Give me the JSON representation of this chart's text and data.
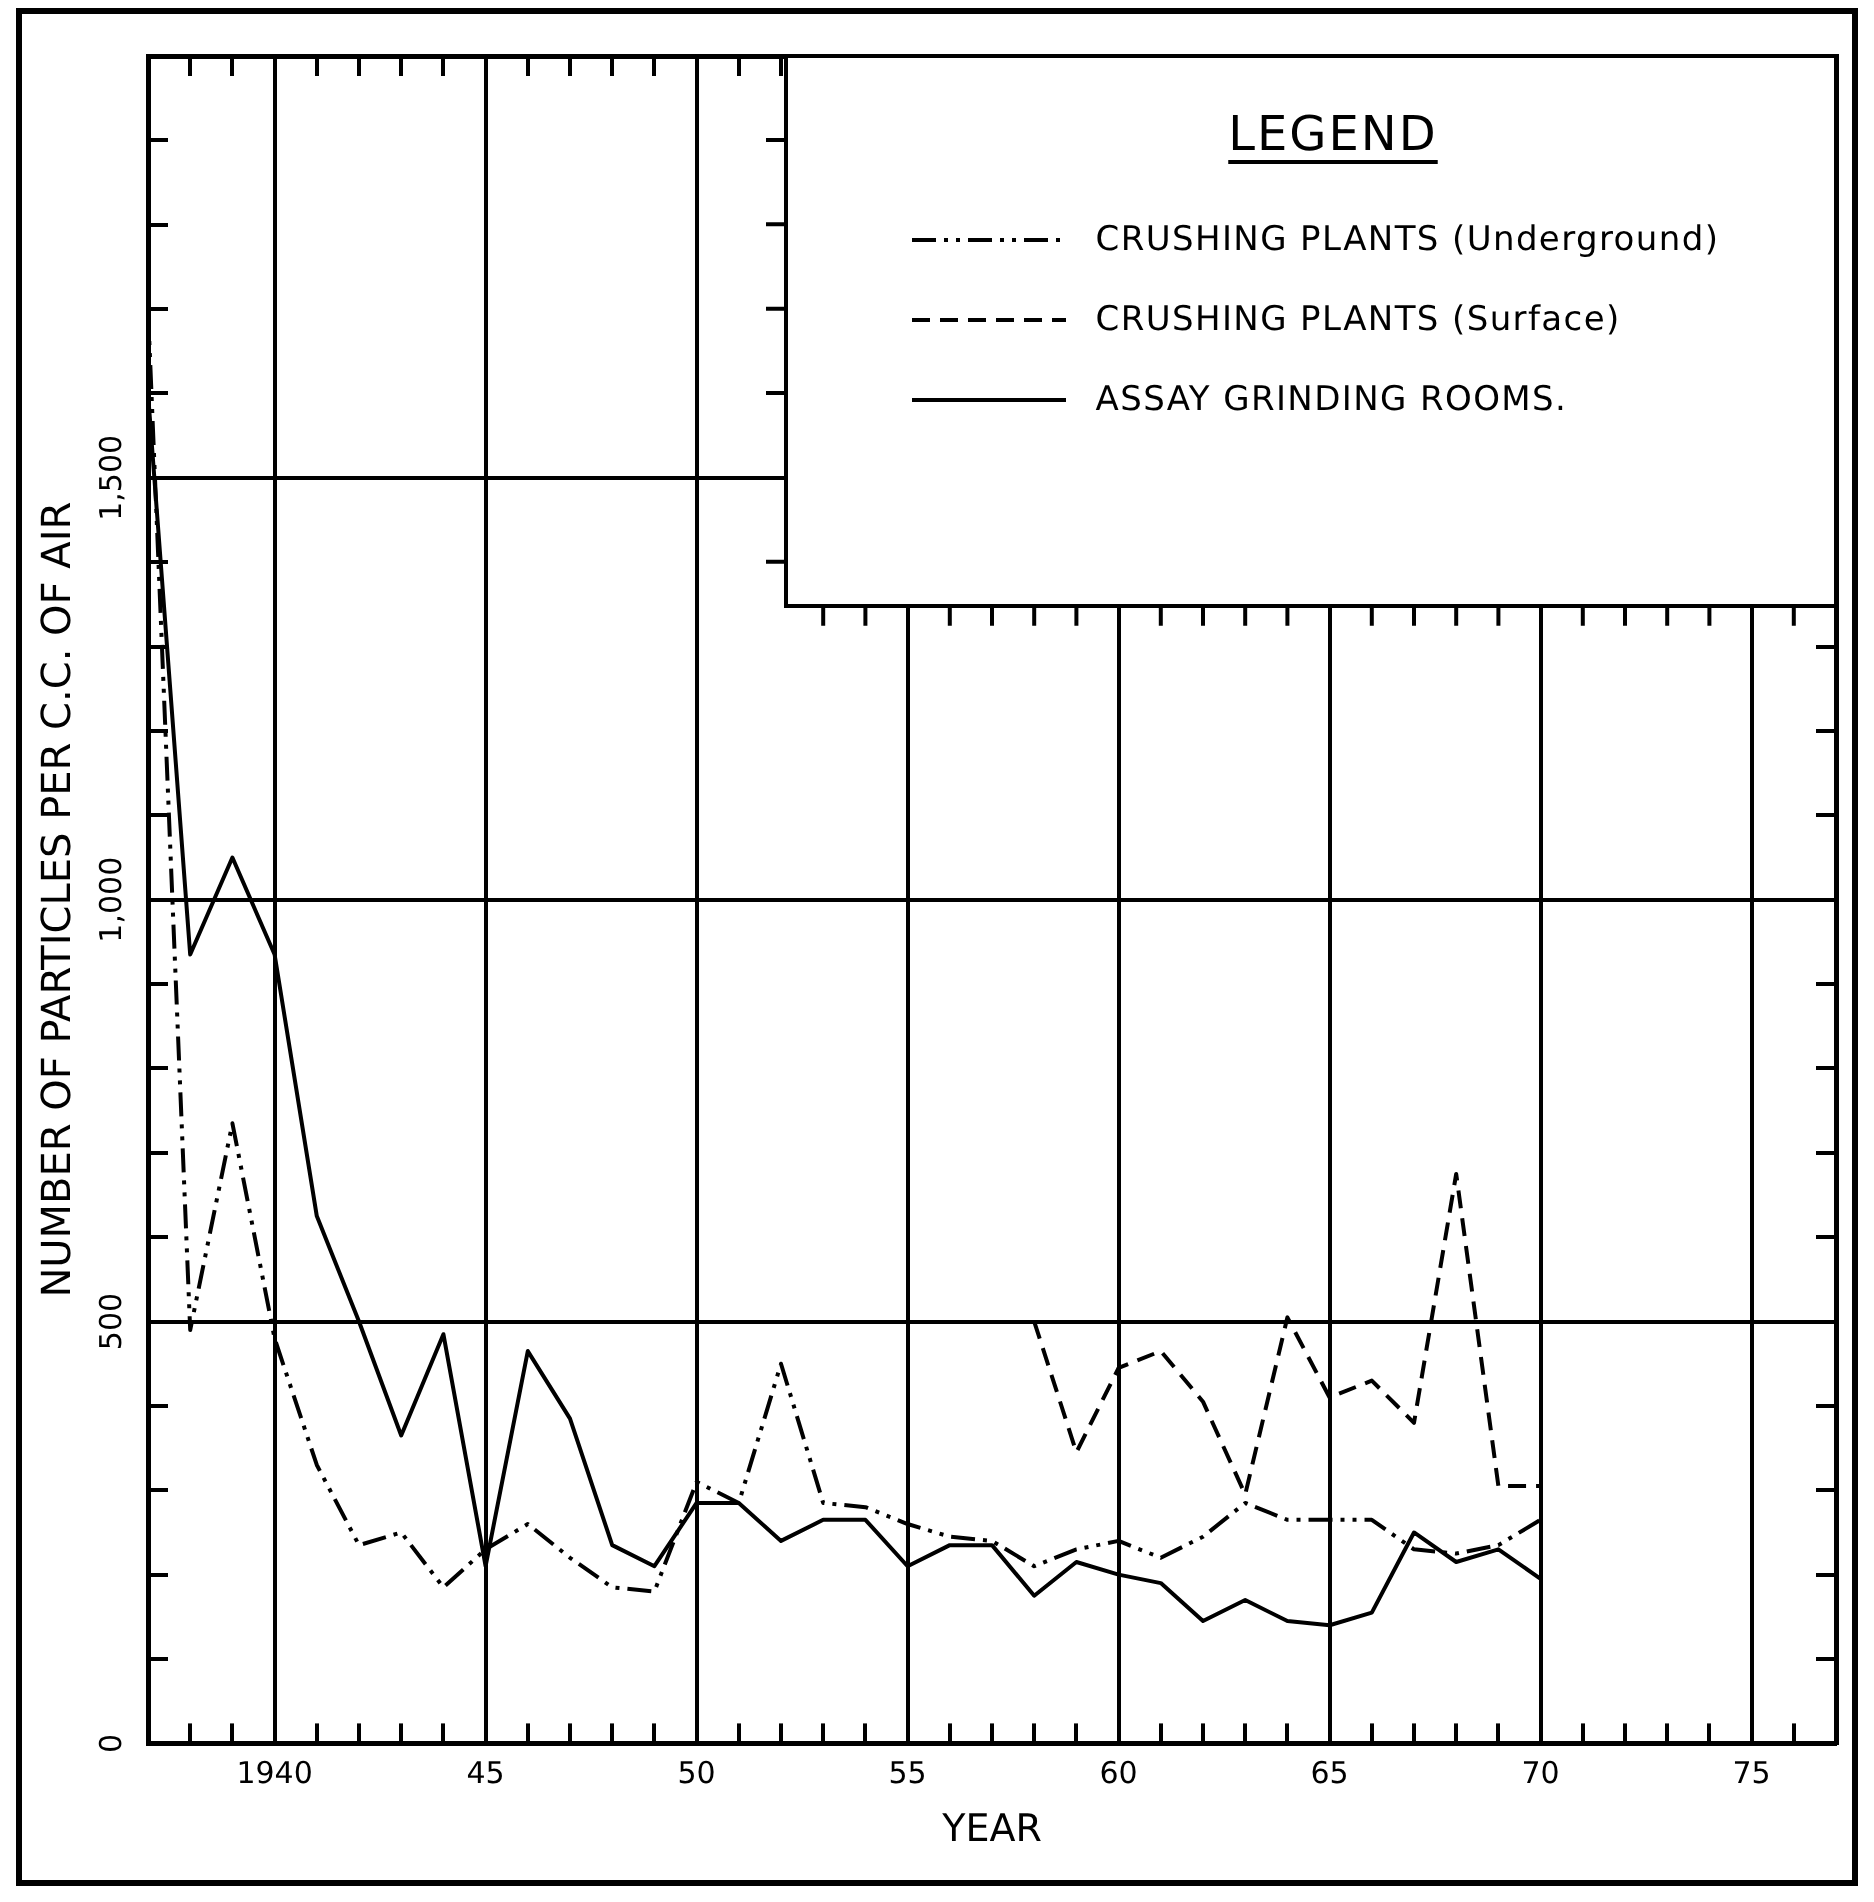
{
  "chart_data": {
    "type": "line",
    "xlabel": "YEAR",
    "ylabel": "NUMBER OF PARTICLES PER C.C. OF AIR",
    "legend_title": "LEGEND",
    "legend": "top right",
    "grid": true,
    "x": [
      1937,
      1938,
      1939,
      1940,
      1941,
      1942,
      1943,
      1944,
      1945,
      1946,
      1947,
      1948,
      1949,
      1950,
      1951,
      1952,
      1953,
      1954,
      1955,
      1956,
      1957,
      1958,
      1959,
      1960,
      1961,
      1962,
      1963,
      1964,
      1965,
      1966,
      1967,
      1968,
      1969,
      1970
    ],
    "xlim": [
      1937,
      1977
    ],
    "xticks": [
      {
        "value": 1938,
        "label": null
      },
      {
        "value": 1939,
        "label": null
      },
      {
        "value": 1940,
        "label": "1940"
      },
      {
        "value": 1941,
        "label": null
      },
      {
        "value": 1942,
        "label": null
      },
      {
        "value": 1943,
        "label": null
      },
      {
        "value": 1944,
        "label": null
      },
      {
        "value": 1945,
        "label": "45"
      },
      {
        "value": 1946,
        "label": null
      },
      {
        "value": 1947,
        "label": null
      },
      {
        "value": 1948,
        "label": null
      },
      {
        "value": 1949,
        "label": null
      },
      {
        "value": 1950,
        "label": "50"
      },
      {
        "value": 1951,
        "label": null
      },
      {
        "value": 1952,
        "label": null
      },
      {
        "value": 1953,
        "label": null
      },
      {
        "value": 1954,
        "label": null
      },
      {
        "value": 1955,
        "label": "55"
      },
      {
        "value": 1956,
        "label": null
      },
      {
        "value": 1957,
        "label": null
      },
      {
        "value": 1958,
        "label": null
      },
      {
        "value": 1959,
        "label": null
      },
      {
        "value": 1960,
        "label": "60"
      },
      {
        "value": 1961,
        "label": null
      },
      {
        "value": 1962,
        "label": null
      },
      {
        "value": 1963,
        "label": null
      },
      {
        "value": 1964,
        "label": null
      },
      {
        "value": 1965,
        "label": "65"
      },
      {
        "value": 1966,
        "label": null
      },
      {
        "value": 1967,
        "label": null
      },
      {
        "value": 1968,
        "label": null
      },
      {
        "value": 1969,
        "label": null
      },
      {
        "value": 1970,
        "label": "70"
      },
      {
        "value": 1971,
        "label": null
      },
      {
        "value": 1972,
        "label": null
      },
      {
        "value": 1973,
        "label": null
      },
      {
        "value": 1974,
        "label": null
      },
      {
        "value": 1975,
        "label": "75"
      },
      {
        "value": 1976,
        "label": null
      }
    ],
    "ylim": [
      0,
      2000
    ],
    "yticks": [
      0,
      {
        "value": 100,
        "label": null
      },
      {
        "value": 200,
        "label": null
      },
      {
        "value": 300,
        "label": null
      },
      {
        "value": 400,
        "label": null
      },
      500,
      {
        "value": 600,
        "label": null
      },
      {
        "value": 700,
        "label": null
      },
      {
        "value": 800,
        "label": null
      },
      {
        "value": 900,
        "label": null
      },
      {
        "value": 1000,
        "label": "1,000"
      },
      {
        "value": 1100,
        "label": null
      },
      {
        "value": 1200,
        "label": null
      },
      {
        "value": 1300,
        "label": null
      },
      {
        "value": 1400,
        "label": null
      },
      {
        "value": 1500,
        "label": "1,500"
      },
      {
        "value": 1600,
        "label": null
      },
      {
        "value": 1700,
        "label": null
      },
      {
        "value": 1800,
        "label": null
      },
      {
        "value": 1900,
        "label": null
      }
    ],
    "series": [
      {
        "name": "CRUSHING PLANTS (Underground)",
        "color": "#000000",
        "line_style": "dashdot",
        "values": [
          1700,
          490,
          735,
          480,
          330,
          235,
          250,
          185,
          230,
          260,
          220,
          185,
          180,
          310,
          285,
          450,
          285,
          280,
          260,
          245,
          240,
          210,
          230,
          240,
          220,
          245,
          285,
          265,
          265,
          265,
          230,
          225,
          235,
          265
        ]
      },
      {
        "name": "CRUSHING PLANTS (Surface)",
        "color": "#000000",
        "line_style": "dashed",
        "x": [
          1958,
          1959,
          1960,
          1961,
          1962,
          1963,
          1964,
          1965,
          1966,
          1967,
          1968,
          1969,
          1970
        ],
        "values": [
          500,
          345,
          445,
          465,
          405,
          295,
          505,
          410,
          430,
          380,
          675,
          305,
          305
        ]
      },
      {
        "name": "ASSAY GRINDING ROOMS.",
        "color": "#000000",
        "line_style": "solid",
        "values": [
          1600,
          935,
          1050,
          935,
          625,
          500,
          365,
          485,
          210,
          465,
          385,
          235,
          210,
          285,
          285,
          240,
          265,
          265,
          210,
          235,
          235,
          175,
          215,
          200,
          190,
          145,
          170,
          145,
          140,
          155,
          250,
          215,
          230,
          195
        ]
      }
    ]
  }
}
